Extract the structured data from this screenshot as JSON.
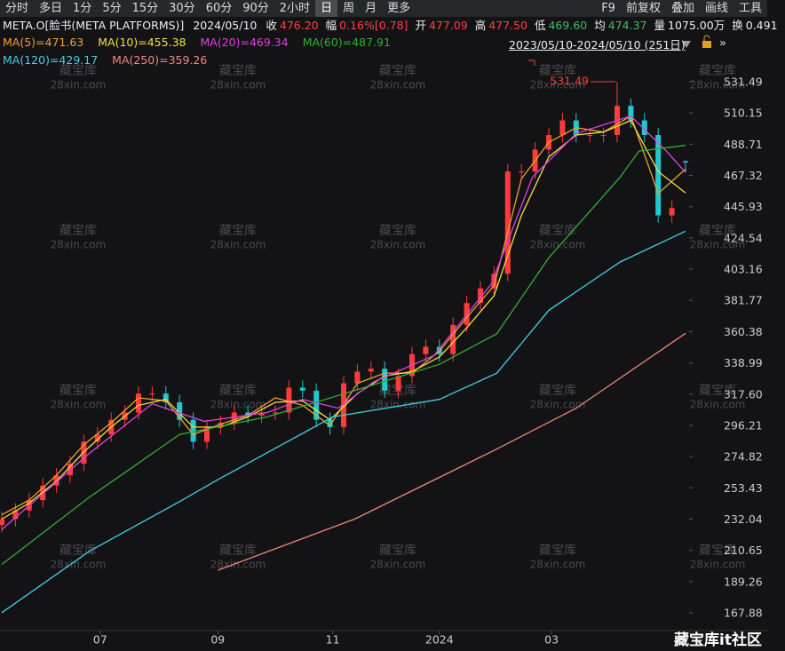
{
  "toolbar": {
    "tabs": [
      "分时",
      "多日",
      "1分",
      "5分",
      "15分",
      "30分",
      "60分",
      "90分",
      "2小时",
      "日",
      "周",
      "月",
      "更多"
    ],
    "active": "日",
    "right_tabs": [
      "F9",
      "前复权",
      "叠加",
      "画线",
      "工具"
    ]
  },
  "info": {
    "symbol": "META.O[脸书(META PLATFORMS)]",
    "date": "2024/05/10",
    "fields": [
      {
        "label": "收",
        "value": "476.20",
        "color": "#ff4040"
      },
      {
        "label": "幅",
        "value": "0.16%[0.78]",
        "color": "#ff4040"
      },
      {
        "label": "开",
        "value": "477.09",
        "color": "#ff4040"
      },
      {
        "label": "高",
        "value": "477.50",
        "color": "#ff4040"
      },
      {
        "label": "低",
        "value": "469.60",
        "color": "#3fbf5f"
      },
      {
        "label": "均",
        "value": "474.37",
        "color": "#3fbf5f"
      },
      {
        "label": "量",
        "value": "1075.00万",
        "color": "#eeeeee"
      },
      {
        "label": "换",
        "value": "0.491",
        "color": "#eeeeee"
      }
    ]
  },
  "chart_data": {
    "type": "candlestick",
    "range_label": "2023/05/10-2024/05/10 (251日)",
    "x": [
      0,
      5,
      10,
      15,
      20,
      25,
      30,
      35,
      40,
      45,
      50,
      55,
      60,
      65,
      70,
      75,
      80,
      85,
      90,
      95,
      100,
      105,
      110,
      115,
      120,
      125,
      130,
      135,
      140,
      145,
      150,
      155,
      160,
      165,
      170,
      175,
      180,
      185,
      190,
      195,
      200,
      205,
      210,
      215,
      220,
      225,
      230,
      235,
      240,
      245,
      250
    ],
    "open": [
      228,
      232,
      238,
      245,
      255,
      262,
      270,
      285,
      290,
      300,
      305,
      318,
      318,
      312,
      300,
      285,
      295,
      298,
      305,
      303,
      305,
      305,
      322,
      320,
      300,
      295,
      325,
      333,
      335,
      320,
      330,
      345,
      350,
      345,
      365,
      380,
      390,
      400,
      470,
      470,
      485,
      495,
      505,
      495,
      495,
      495,
      515,
      505,
      495,
      440,
      477.09
    ],
    "high": [
      237,
      243,
      250,
      260,
      267,
      275,
      290,
      295,
      305,
      310,
      323,
      323,
      323,
      317,
      305,
      300,
      303,
      310,
      310,
      310,
      310,
      327,
      327,
      325,
      305,
      330,
      338,
      340,
      340,
      335,
      350,
      355,
      355,
      370,
      385,
      395,
      405,
      475,
      475,
      490,
      500,
      510,
      510,
      500,
      500,
      531.49,
      520,
      510,
      500,
      450,
      477.5
    ],
    "low": [
      223,
      227,
      233,
      240,
      250,
      257,
      265,
      280,
      285,
      295,
      300,
      313,
      307,
      295,
      280,
      280,
      290,
      293,
      298,
      298,
      300,
      300,
      315,
      295,
      290,
      290,
      320,
      328,
      315,
      315,
      325,
      340,
      340,
      340,
      360,
      375,
      385,
      395,
      465,
      465,
      480,
      490,
      490,
      490,
      490,
      490,
      500,
      490,
      435,
      435,
      469.6
    ],
    "close": [
      232,
      238,
      245,
      255,
      262,
      270,
      285,
      290,
      300,
      305,
      318,
      318,
      312,
      300,
      285,
      295,
      298,
      305,
      303,
      305,
      305,
      322,
      320,
      300,
      295,
      325,
      333,
      335,
      320,
      330,
      345,
      350,
      345,
      365,
      380,
      390,
      400,
      470,
      470,
      485,
      495,
      505,
      495,
      495,
      495,
      515,
      505,
      495,
      440,
      445,
      476.2
    ],
    "up_color": "#ff3b3b",
    "down_color": "#22c8d0",
    "series": [
      {
        "name": "MA(5)=471.63",
        "color": "#f0a030",
        "x": [
          0,
          10,
          20,
          30,
          40,
          50,
          60,
          70,
          80,
          90,
          100,
          110,
          120,
          130,
          140,
          150,
          160,
          170,
          180,
          190,
          200,
          210,
          220,
          230,
          240,
          250
        ],
        "values": [
          235,
          245,
          262,
          283,
          298,
          315,
          313,
          290,
          297,
          303,
          315,
          310,
          296,
          325,
          332,
          332,
          347,
          370,
          392,
          465,
          490,
          500,
          497,
          508,
          455,
          471.63
        ]
      },
      {
        "name": "MA(10)=455.38",
        "color": "#f0e040",
        "x": [
          0,
          10,
          20,
          30,
          40,
          50,
          60,
          70,
          80,
          90,
          100,
          110,
          120,
          130,
          140,
          150,
          160,
          170,
          180,
          190,
          200,
          210,
          220,
          230,
          240,
          250
        ],
        "values": [
          232,
          243,
          258,
          278,
          295,
          310,
          314,
          295,
          295,
          302,
          312,
          313,
          300,
          318,
          330,
          333,
          343,
          363,
          385,
          440,
          480,
          495,
          497,
          505,
          470,
          455.38
        ]
      },
      {
        "name": "MA(20)=469.34",
        "color": "#e040e0",
        "x": [
          0,
          32,
          55,
          74,
          97,
          110,
          123,
          136,
          158,
          179,
          194,
          210,
          230,
          243,
          250
        ],
        "values": [
          225,
          277,
          311,
          299,
          305,
          314,
          308,
          326,
          344,
          393,
          466,
          496,
          508,
          484,
          469.34
        ]
      },
      {
        "name": "MA(60)=487.91",
        "color": "#2fb030",
        "x": [
          0,
          32,
          65,
          97,
          129,
          160,
          181,
          200,
          226,
          233,
          250
        ],
        "values": [
          201,
          247,
          290,
          302,
          320,
          338,
          359,
          411,
          466,
          484,
          487.91
        ]
      },
      {
        "name": "MA(120)=429.17",
        "color": "#40d0e0",
        "x": [
          0,
          32,
          65,
          79,
          121,
          160,
          181,
          200,
          226,
          250
        ],
        "values": [
          168,
          210,
          244,
          259,
          302,
          314,
          332,
          375,
          408,
          429.17
        ]
      },
      {
        "name": "MA(250)=359.26",
        "color": "#f08878",
        "x": [
          79,
          129,
          181,
          210,
          250
        ],
        "values": [
          197,
          232,
          280,
          308,
          359.26
        ]
      }
    ],
    "xlim": [
      0,
      250
    ],
    "ylim": [
      155.72,
      560.07
    ],
    "yticks": [
      531.49,
      510.15,
      488.71,
      467.32,
      445.93,
      424.54,
      403.16,
      381.77,
      360.38,
      338.99,
      {
        "value": 317.6,
        "label": "317.60"
      },
      296.21,
      274.82,
      253.43,
      232.04,
      210.65,
      189.26,
      167.88
    ],
    "xticks": [
      {
        "value": 36,
        "label": "07"
      },
      {
        "value": 79,
        "label": "09"
      },
      {
        "value": 121,
        "label": "11"
      },
      {
        "value": 160,
        "label": "2024"
      },
      {
        "value": 201,
        "label": "03"
      }
    ],
    "annotation": {
      "text": "531.49",
      "value": 531.49,
      "x": 225,
      "color": "#ff3b3b"
    }
  },
  "watermark": [
    "藏宝库",
    "28xin.com"
  ],
  "footer": "藏宝库it社区"
}
